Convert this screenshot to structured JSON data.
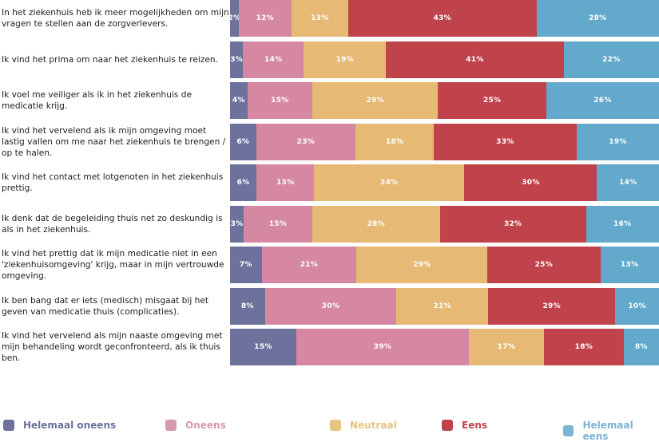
{
  "chart_data": {
    "type": "bar",
    "orientation": "horizontal",
    "stacked": true,
    "title": "",
    "xlabel": "",
    "ylabel": "",
    "xlim": [
      0,
      100
    ],
    "grid": false,
    "legend_position": "bottom",
    "categories": [
      "In het ziekenhuis heb ik meer mogelijkheden om mijn vragen te stellen aan de zorgverlevers.",
      "Ik vind het prima om naar het ziekenhuis te reizen.",
      "Ik voel me veiliger als ik in het ziekenhuis de medicatie krijg.",
      "Ik vind het vervelend als ik mijn omgeving moet lastig vallen om me naar het ziekenhuis te brengen / op te halen.",
      "Ik vind het contact met lotgenoten in het ziekenhuis prettig.",
      "Ik denk dat de begeleiding thuis net zo deskundig is als in het ziekenhuis.",
      "Ik vind het prettig dat ik mijn medicatie niet in een 'ziekenhuisomgeving' krijg, maar in mijn vertrouwde omgeving.",
      "Ik ben bang dat er iets (medisch) misgaat bij het geven van medicatie thuis (complicaties).",
      "Ik vind het vervelend als mijn naaste omgeving met mijn behandeling wordt geconfronteerd, als ik thuis ben."
    ],
    "series": [
      {
        "name": "Helemaal oneens",
        "color": "#6d729c",
        "values": [
          2,
          3,
          4,
          6,
          6,
          3,
          7,
          8,
          15
        ]
      },
      {
        "name": "Oneens",
        "color": "#d688a2",
        "values": [
          12,
          14,
          15,
          23,
          13,
          15,
          21,
          30,
          39
        ]
      },
      {
        "name": "Neutraal",
        "color": "#e6b975",
        "values": [
          13,
          19,
          29,
          18,
          34,
          28,
          29,
          21,
          17
        ]
      },
      {
        "name": "Eens",
        "color": "#c0434b",
        "values": [
          43,
          41,
          25,
          33,
          30,
          32,
          25,
          29,
          18
        ]
      },
      {
        "name": "Helemaal eens",
        "color": "#62a9cc",
        "values": [
          28,
          22,
          26,
          19,
          14,
          16,
          13,
          10,
          8
        ]
      }
    ],
    "value_suffix": "%"
  },
  "legend": {
    "items": [
      {
        "label": "Helemaal oneens",
        "color": "#6d729c",
        "text_color": "#6d729c"
      },
      {
        "label": "Oneens",
        "color": "#d898ac",
        "text_color": "#d898ac"
      },
      {
        "label": "Neutraal",
        "color": "#e6c482",
        "text_color": "#e6c482"
      },
      {
        "label": "Eens",
        "color": "#c0434b",
        "text_color": "#c0434b"
      },
      {
        "label": "Helemaal eens",
        "color": "#7cb4d6",
        "text_color": "#7cb4d6"
      }
    ]
  }
}
